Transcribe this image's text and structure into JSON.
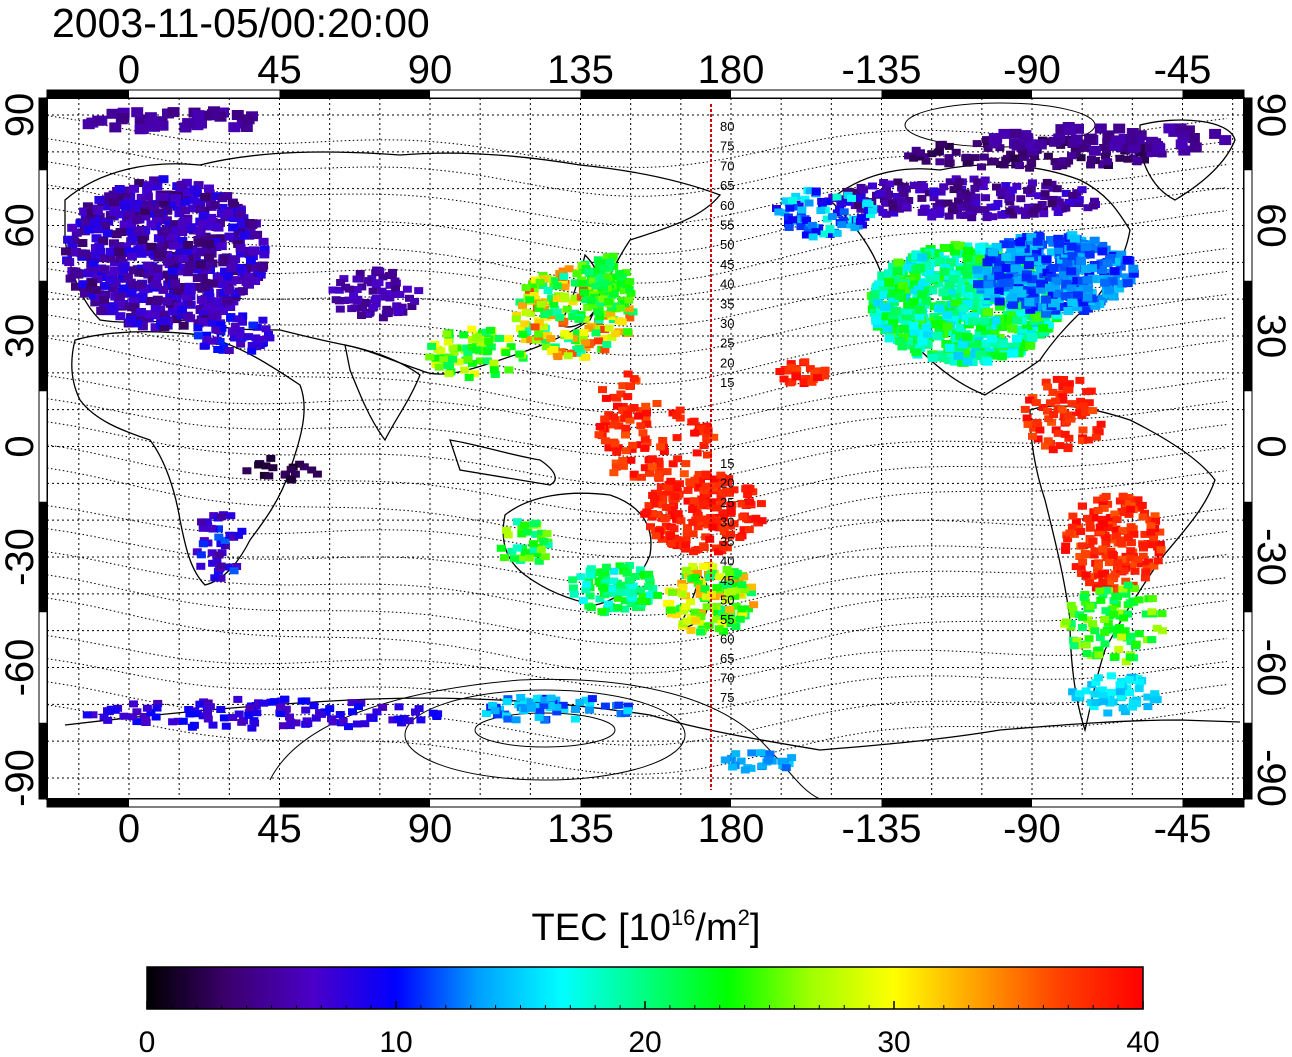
{
  "title": "2003-11-05/00:20:00",
  "map": {
    "x_ticks_top": [
      "0",
      "45",
      "90",
      "135",
      "180",
      "-135",
      "-90",
      "-45"
    ],
    "x_ticks_bottom": [
      "0",
      "45",
      "90",
      "135",
      "180",
      "-135",
      "-90",
      "-45"
    ],
    "y_ticks": [
      "90",
      "60",
      "30",
      "0",
      "-30",
      "-60",
      "-90"
    ],
    "contour_labels_north": [
      "80",
      "75",
      "70",
      "65",
      "60",
      "55",
      "50",
      "45",
      "40",
      "35",
      "30",
      "25",
      "20",
      "15"
    ],
    "contour_labels_south": [
      "15",
      "20",
      "25",
      "30",
      "35",
      "40",
      "45",
      "50",
      "55",
      "60",
      "65",
      "70",
      "75"
    ],
    "meridian_color": "#d40000"
  },
  "colorbar": {
    "title_prefix": "TEC  [10",
    "title_exp1": "16",
    "title_mid": "/m",
    "title_exp2": "2",
    "title_suffix": "]",
    "tick_labels": [
      "0",
      "10",
      "20",
      "30",
      "40"
    ],
    "min": 0,
    "max": 40,
    "colors": [
      "#000000",
      "#3d0070",
      "#4b00c8",
      "#0000ff",
      "#00a0ff",
      "#00ffff",
      "#00ff80",
      "#00ff00",
      "#a0ff00",
      "#ffff00",
      "#ffa000",
      "#ff4000",
      "#ff0000"
    ]
  }
}
